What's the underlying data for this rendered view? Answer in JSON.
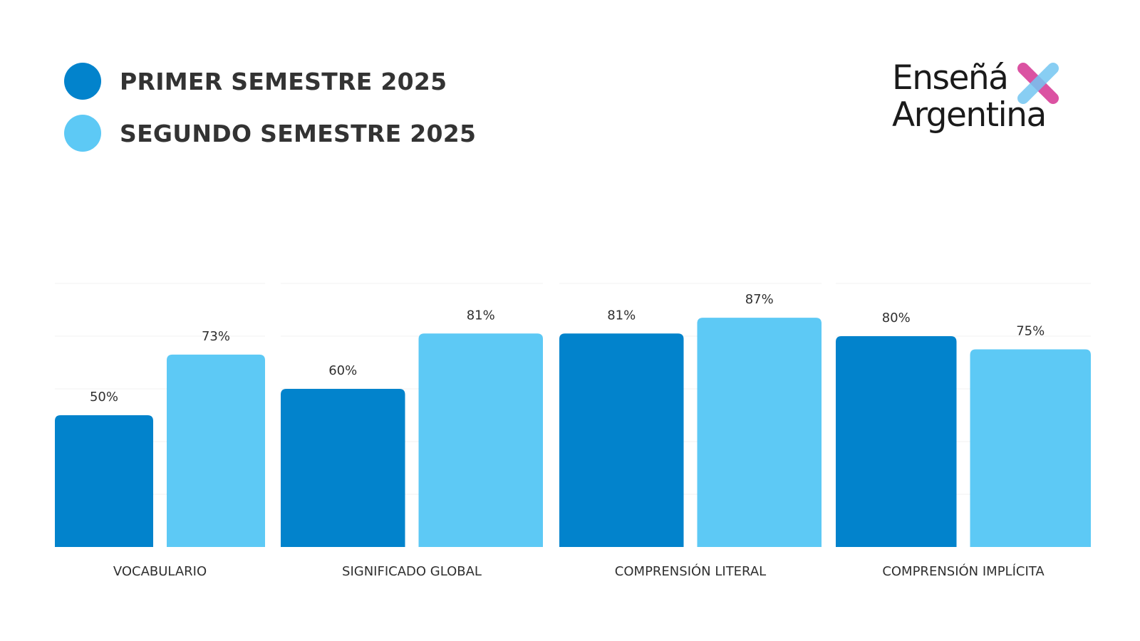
{
  "legend": {
    "items": [
      {
        "label": "PRIMER SEMESTRE 2025",
        "color": "#0283CC"
      },
      {
        "label": "SEGUNDO SEMESTRE 2025",
        "color": "#5DC9F5"
      }
    ]
  },
  "logo": {
    "line1": "Enseñá",
    "line2": "Argentina",
    "x_colors": [
      "#D9449B",
      "#74C6F2"
    ]
  },
  "chart_data": {
    "type": "bar",
    "categories": [
      "VOCABULARIO",
      "SIGNIFICADO GLOBAL",
      "COMPRENSIÓN LITERAL",
      "COMPRENSIÓN IMPLÍCITA"
    ],
    "series": [
      {
        "name": "PRIMER SEMESTRE 2025",
        "color": "#0283CC",
        "values": [
          50,
          60,
          81,
          80
        ],
        "labels": [
          "50%",
          "60%",
          "81%",
          "80%"
        ]
      },
      {
        "name": "SEGUNDO SEMESTRE 2025",
        "color": "#5DC9F5",
        "values": [
          73,
          81,
          87,
          75
        ],
        "labels": [
          "73%",
          "81%",
          "87%",
          "75%"
        ]
      }
    ],
    "ylim": [
      0,
      100
    ],
    "value_suffix": "%",
    "legend_position": "top-left",
    "grid": true
  }
}
